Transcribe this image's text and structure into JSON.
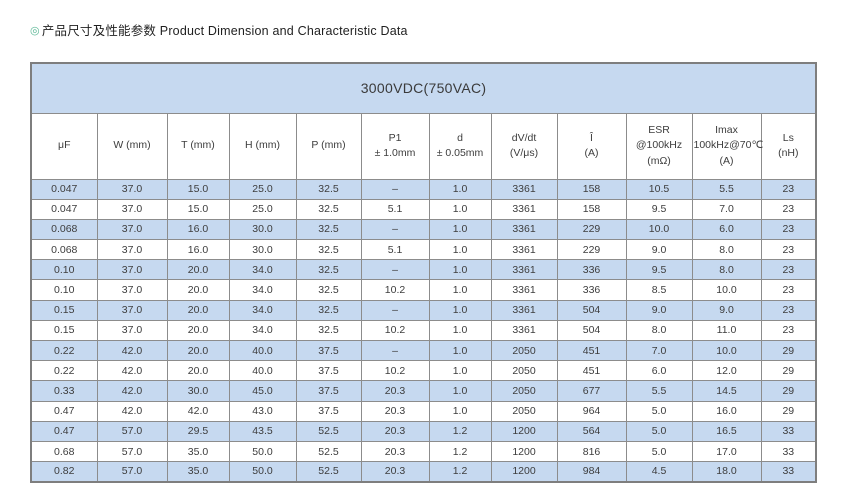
{
  "page_title": {
    "bullet_icon": "◎",
    "text": "产品尺寸及性能参数 Product Dimension and Characteristic Data"
  },
  "colors": {
    "band_blue": "#c6d9f0",
    "stripe_blue": "#c6d9f0",
    "border_gray": "#8c8c8c",
    "text_dark": "#3d3d3d",
    "title_bullet_green": "#5cb896"
  },
  "table": {
    "title": "3000VDC(750VAC)",
    "columns": [
      {
        "lines": [
          "μF"
        ]
      },
      {
        "lines": [
          "W (mm)"
        ]
      },
      {
        "lines": [
          "T (mm)"
        ]
      },
      {
        "lines": [
          "H (mm)"
        ]
      },
      {
        "lines": [
          "P (mm)"
        ]
      },
      {
        "lines": [
          "P1",
          "± 1.0mm"
        ]
      },
      {
        "lines": [
          "d",
          "± 0.05mm"
        ]
      },
      {
        "lines": [
          "dV/dt",
          "(V/μs)"
        ]
      },
      {
        "lines": [
          "Î",
          "(A)"
        ]
      },
      {
        "lines": [
          "ESR",
          "@100kHz",
          "(mΩ)"
        ]
      },
      {
        "lines": [
          "Imax",
          "100kHz@70℃",
          "(A)"
        ]
      },
      {
        "lines": [
          "Ls",
          "(nH)"
        ]
      }
    ],
    "rows": [
      [
        "0.047",
        "37.0",
        "15.0",
        "25.0",
        "32.5",
        "–",
        "1.0",
        "3361",
        "158",
        "10.5",
        "5.5",
        "23"
      ],
      [
        "0.047",
        "37.0",
        "15.0",
        "25.0",
        "32.5",
        "5.1",
        "1.0",
        "3361",
        "158",
        "9.5",
        "7.0",
        "23"
      ],
      [
        "0.068",
        "37.0",
        "16.0",
        "30.0",
        "32.5",
        "–",
        "1.0",
        "3361",
        "229",
        "10.0",
        "6.0",
        "23"
      ],
      [
        "0.068",
        "37.0",
        "16.0",
        "30.0",
        "32.5",
        "5.1",
        "1.0",
        "3361",
        "229",
        "9.0",
        "8.0",
        "23"
      ],
      [
        "0.10",
        "37.0",
        "20.0",
        "34.0",
        "32.5",
        "–",
        "1.0",
        "3361",
        "336",
        "9.5",
        "8.0",
        "23"
      ],
      [
        "0.10",
        "37.0",
        "20.0",
        "34.0",
        "32.5",
        "10.2",
        "1.0",
        "3361",
        "336",
        "8.5",
        "10.0",
        "23"
      ],
      [
        "0.15",
        "37.0",
        "20.0",
        "34.0",
        "32.5",
        "–",
        "1.0",
        "3361",
        "504",
        "9.0",
        "9.0",
        "23"
      ],
      [
        "0.15",
        "37.0",
        "20.0",
        "34.0",
        "32.5",
        "10.2",
        "1.0",
        "3361",
        "504",
        "8.0",
        "11.0",
        "23"
      ],
      [
        "0.22",
        "42.0",
        "20.0",
        "40.0",
        "37.5",
        "–",
        "1.0",
        "2050",
        "451",
        "7.0",
        "10.0",
        "29"
      ],
      [
        "0.22",
        "42.0",
        "20.0",
        "40.0",
        "37.5",
        "10.2",
        "1.0",
        "2050",
        "451",
        "6.0",
        "12.0",
        "29"
      ],
      [
        "0.33",
        "42.0",
        "30.0",
        "45.0",
        "37.5",
        "20.3",
        "1.0",
        "2050",
        "677",
        "5.5",
        "14.5",
        "29"
      ],
      [
        "0.47",
        "42.0",
        "42.0",
        "43.0",
        "37.5",
        "20.3",
        "1.0",
        "2050",
        "964",
        "5.0",
        "16.0",
        "29"
      ],
      [
        "0.47",
        "57.0",
        "29.5",
        "43.5",
        "52.5",
        "20.3",
        "1.2",
        "1200",
        "564",
        "5.0",
        "16.5",
        "33"
      ],
      [
        "0.68",
        "57.0",
        "35.0",
        "50.0",
        "52.5",
        "20.3",
        "1.2",
        "1200",
        "816",
        "5.0",
        "17.0",
        "33"
      ],
      [
        "0.82",
        "57.0",
        "35.0",
        "50.0",
        "52.5",
        "20.3",
        "1.2",
        "1200",
        "984",
        "4.5",
        "18.0",
        "33"
      ]
    ],
    "stripe_pattern": "even-rows-blue"
  }
}
